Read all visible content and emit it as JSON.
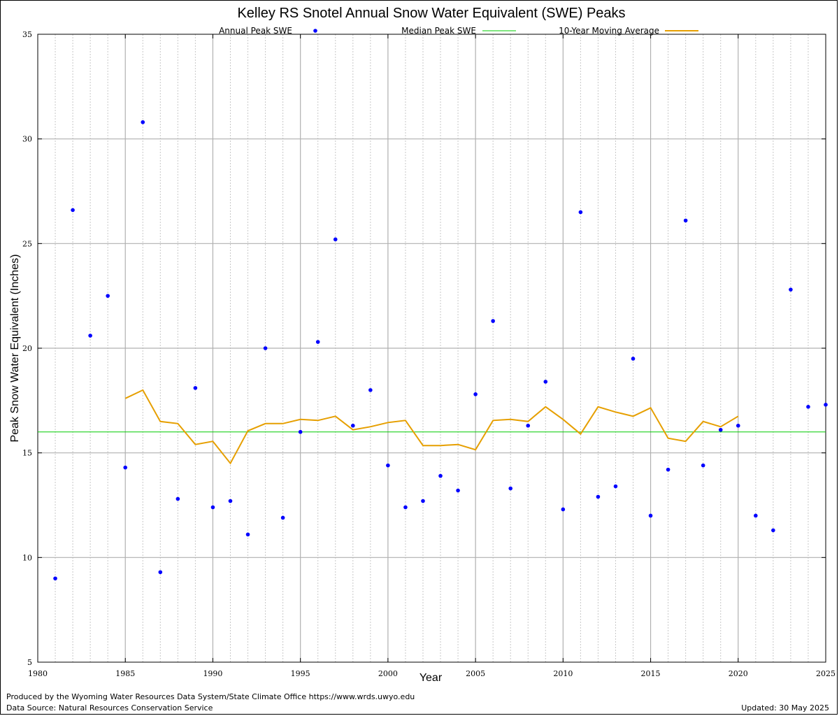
{
  "chart_data": {
    "type": "scatter",
    "title": "Kelley RS Snotel Annual Snow Water Equivalent (SWE) Peaks",
    "xlabel": "Year",
    "ylabel": "Peak Snow Water Equivalent (Inches)",
    "xlim": [
      1980,
      2025
    ],
    "ylim": [
      5,
      35
    ],
    "x_ticks": [
      1980,
      1985,
      1990,
      1995,
      2000,
      2005,
      2010,
      2015,
      2020,
      2025
    ],
    "y_ticks": [
      5,
      10,
      15,
      20,
      25,
      30,
      35
    ],
    "grid": true,
    "legend_position": "top",
    "series": [
      {
        "name": "Annual Peak SWE",
        "kind": "points",
        "color": "#0000ff",
        "x": [
          1981,
          1982,
          1983,
          1984,
          1985,
          1986,
          1987,
          1988,
          1989,
          1990,
          1991,
          1992,
          1993,
          1994,
          1995,
          1996,
          1997,
          1998,
          1999,
          2000,
          2001,
          2002,
          2003,
          2004,
          2005,
          2006,
          2007,
          2008,
          2009,
          2010,
          2011,
          2012,
          2013,
          2014,
          2015,
          2016,
          2017,
          2018,
          2019,
          2020,
          2021,
          2022,
          2023,
          2024,
          2025
        ],
        "y": [
          9.0,
          26.6,
          20.6,
          22.5,
          14.3,
          30.8,
          9.3,
          12.8,
          18.1,
          12.4,
          12.7,
          11.1,
          20.0,
          11.9,
          16.0,
          20.3,
          25.2,
          16.3,
          18.0,
          14.4,
          12.4,
          12.7,
          13.9,
          13.2,
          17.8,
          21.3,
          13.3,
          16.3,
          18.4,
          12.3,
          26.5,
          12.9,
          13.4,
          19.5,
          12.0,
          14.2,
          26.1,
          14.4,
          16.1,
          16.3,
          12.0,
          11.3,
          22.8,
          17.2,
          17.3
        ]
      },
      {
        "name": "Median Peak SWE",
        "kind": "hline",
        "color": "#00cc00",
        "value": 16.0
      },
      {
        "name": "10-Year Moving Average",
        "kind": "line",
        "color": "#e69f00",
        "x": [
          1985,
          1986,
          1987,
          1988,
          1989,
          1990,
          1991,
          1992,
          1993,
          1994,
          1995,
          1996,
          1997,
          1998,
          1999,
          2000,
          2001,
          2002,
          2003,
          2004,
          2005,
          2006,
          2007,
          2008,
          2009,
          2010,
          2011,
          2012,
          2013,
          2014,
          2015,
          2016,
          2017,
          2018,
          2019,
          2020
        ],
        "y": [
          17.6,
          18.0,
          16.5,
          16.4,
          15.4,
          15.55,
          14.5,
          16.05,
          16.4,
          16.4,
          16.6,
          16.55,
          16.75,
          16.1,
          16.25,
          16.45,
          16.55,
          15.35,
          15.35,
          15.4,
          15.15,
          16.55,
          16.6,
          16.5,
          17.2,
          16.6,
          15.9,
          17.2,
          16.95,
          16.75,
          17.15,
          15.7,
          15.55,
          16.5,
          16.25,
          16.75
        ]
      }
    ]
  },
  "footer": {
    "credit": "Produced by the Wyoming Water Resources Data System/State Climate Office https://www.wrds.uwyo.edu",
    "source": "Data Source: Natural Resources Conservation Service",
    "updated": "Updated: 30 May 2025"
  }
}
